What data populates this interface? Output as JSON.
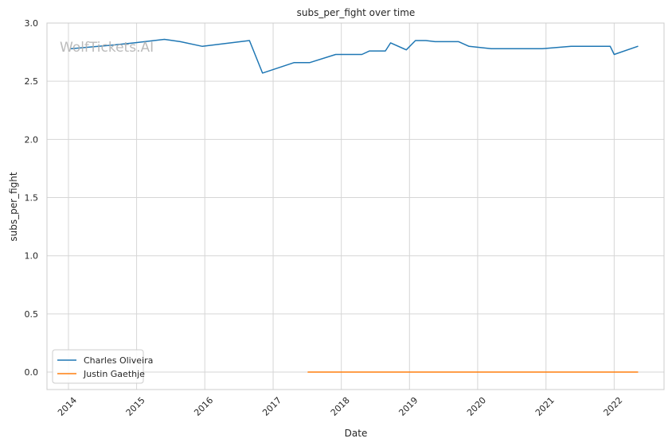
{
  "chart_data": {
    "type": "line",
    "title": "subs_per_fight over time",
    "xlabel": "Date",
    "ylabel": "subs_per_fight",
    "watermark": "WolfTickets.AI",
    "x_ticks": [
      "2014",
      "2015",
      "2016",
      "2017",
      "2018",
      "2019",
      "2020",
      "2021",
      "2022"
    ],
    "y_ticks": [
      "0.0",
      "0.5",
      "1.0",
      "1.5",
      "2.0",
      "2.5",
      "3.0"
    ],
    "xlim": [
      "2013-09-08",
      "2022-09-25"
    ],
    "ylim": [
      -0.15,
      3.0
    ],
    "grid": true,
    "legend_position": "lower-left",
    "series": [
      {
        "name": "Charles Oliveira",
        "color": "#1f77b4",
        "points": [
          [
            "2014-01-15",
            2.78
          ],
          [
            "2014-08-23",
            2.81
          ],
          [
            "2014-12-20",
            2.83
          ],
          [
            "2015-05-30",
            2.86
          ],
          [
            "2015-08-23",
            2.84
          ],
          [
            "2015-12-19",
            2.8
          ],
          [
            "2016-08-27",
            2.85
          ],
          [
            "2016-11-05",
            2.57
          ],
          [
            "2017-04-22",
            2.66
          ],
          [
            "2017-07-15",
            2.66
          ],
          [
            "2017-12-02",
            2.73
          ],
          [
            "2018-04-21",
            2.73
          ],
          [
            "2018-06-01",
            2.76
          ],
          [
            "2018-08-25",
            2.76
          ],
          [
            "2018-09-22",
            2.83
          ],
          [
            "2018-12-15",
            2.77
          ],
          [
            "2019-02-02",
            2.85
          ],
          [
            "2019-03-30",
            2.85
          ],
          [
            "2019-05-18",
            2.84
          ],
          [
            "2019-09-21",
            2.84
          ],
          [
            "2019-11-16",
            2.8
          ],
          [
            "2020-03-14",
            2.78
          ],
          [
            "2020-12-12",
            2.78
          ],
          [
            "2021-05-15",
            2.8
          ],
          [
            "2021-12-11",
            2.8
          ],
          [
            "2022-01-01",
            2.73
          ],
          [
            "2022-05-07",
            2.8
          ]
        ]
      },
      {
        "name": "Justin Gaethje",
        "color": "#ff7f0e",
        "points": [
          [
            "2017-07-07",
            0.0
          ],
          [
            "2017-12-02",
            0.0
          ],
          [
            "2018-04-14",
            0.0
          ],
          [
            "2018-08-25",
            0.0
          ],
          [
            "2019-03-30",
            0.0
          ],
          [
            "2019-09-14",
            0.0
          ],
          [
            "2020-05-09",
            0.0
          ],
          [
            "2020-10-24",
            0.0
          ],
          [
            "2021-11-06",
            0.0
          ],
          [
            "2022-05-07",
            0.0
          ]
        ]
      }
    ]
  }
}
